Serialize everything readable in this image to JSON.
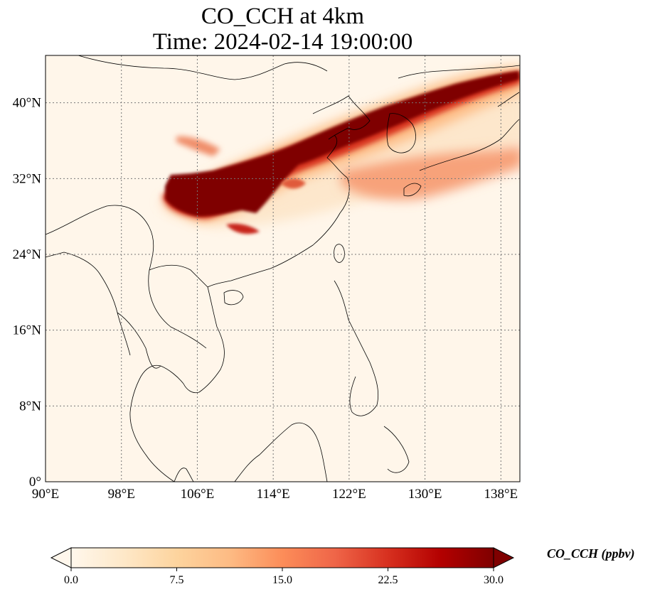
{
  "title": {
    "line1": "CO_CCH at 4km",
    "line2": "Time: 2024-02-14 19:00:00"
  },
  "map": {
    "lon_range": [
      90,
      140
    ],
    "lat_range": [
      0,
      45
    ],
    "lon_ticks": [
      "90°E",
      "98°E",
      "106°E",
      "114°E",
      "122°E",
      "130°E",
      "138°E"
    ],
    "lat_ticks": [
      "0°",
      "8°N",
      "16°N",
      "24°N",
      "32°N",
      "40°N"
    ],
    "gridlines": true,
    "gridline_style": "dotted",
    "plume_description_levels": {
      "max_level_ppbv": 30,
      "core_region": "eastern China to Korea and Sea of Japan"
    }
  },
  "colorbar": {
    "label": "CO_CCH (ppbv)",
    "ticks": [
      "0.0",
      "7.5",
      "15.0",
      "22.5",
      "30.0"
    ],
    "min": 0,
    "max": 30,
    "extend": "both",
    "colors": [
      "#fff7ec",
      "#fee8c8",
      "#fdd49e",
      "#fdbb84",
      "#fc8d59",
      "#ef6548",
      "#d7301f",
      "#b30000",
      "#7f0000"
    ]
  }
}
